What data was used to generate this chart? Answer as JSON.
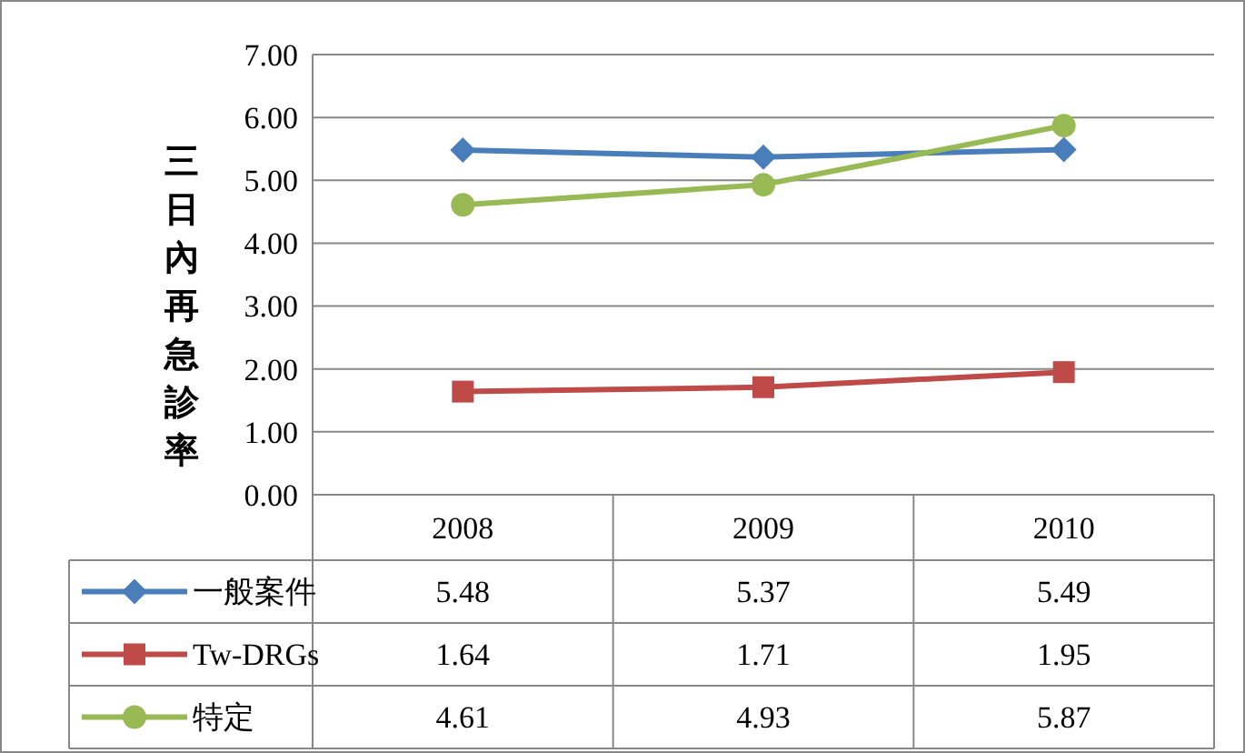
{
  "chart_data": {
    "type": "line",
    "ylabel": "三日內再急診率",
    "categories": [
      "2008",
      "2009",
      "2010"
    ],
    "series": [
      {
        "name": "一般案件",
        "color": "#4a7ebb",
        "marker": "diamond",
        "values": [
          5.48,
          5.37,
          5.49
        ]
      },
      {
        "name": "Tw-DRGs",
        "color": "#be4b48",
        "marker": "square",
        "values": [
          1.64,
          1.71,
          1.95
        ]
      },
      {
        "name": "特定",
        "color": "#98b954",
        "marker": "circle",
        "values": [
          4.61,
          4.93,
          5.87
        ]
      }
    ],
    "ylim": [
      0,
      7
    ],
    "yticks": [
      {
        "value": 0,
        "label": "0.00"
      },
      {
        "value": 1,
        "label": "1.00"
      },
      {
        "value": 2,
        "label": "2.00"
      },
      {
        "value": 3,
        "label": "3.00"
      },
      {
        "value": 4,
        "label": "4.00"
      },
      {
        "value": 5,
        "label": "5.00"
      },
      {
        "value": 6,
        "label": "6.00"
      },
      {
        "value": 7,
        "label": "7.00"
      }
    ],
    "grid": "y",
    "legend": "bottom",
    "data_labels": true,
    "line_style": "solid"
  }
}
